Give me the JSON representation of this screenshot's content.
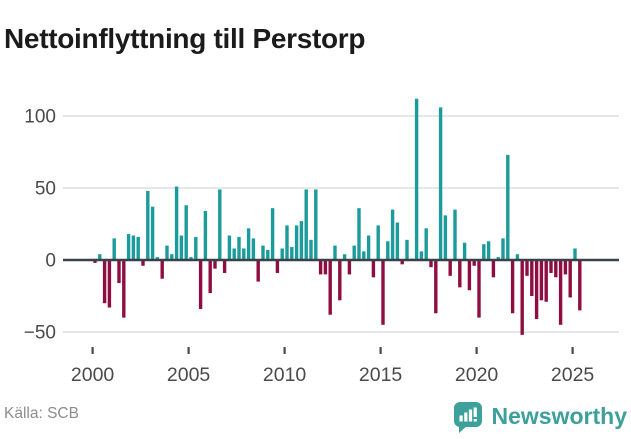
{
  "title": "Nettoinflyttning till Perstorp",
  "source_label": "Källa: SCB",
  "branding": {
    "logo_text": "Newsworthy"
  },
  "colors": {
    "positive": "#1b9b9b",
    "negative": "#8e0e42",
    "grid": "#e7e7e7",
    "zero_line": "#3b4148",
    "axis_text": "#4a4a4a",
    "tick_mark": "#4a4a4a",
    "title_text": "#1b1b1b",
    "source_text": "#8d8d8d",
    "brand": "#3da09b"
  },
  "chart_data": {
    "type": "bar",
    "title": "Nettoinflyttning till Perstorp",
    "ylabel": "",
    "xlabel": "",
    "frequency": "quarterly",
    "x_ticks": [
      2000,
      2005,
      2010,
      2015,
      2020,
      2025
    ],
    "y_ticks": [
      100,
      50,
      0,
      -50
    ],
    "ylim": [
      -60,
      120
    ],
    "grid": true,
    "legend": "none",
    "categories": [
      "2000Q1",
      "2000Q2",
      "2000Q3",
      "2000Q4",
      "2001Q1",
      "2001Q2",
      "2001Q3",
      "2001Q4",
      "2002Q1",
      "2002Q2",
      "2002Q3",
      "2002Q4",
      "2003Q1",
      "2003Q2",
      "2003Q3",
      "2003Q4",
      "2004Q1",
      "2004Q2",
      "2004Q3",
      "2004Q4",
      "2005Q1",
      "2005Q2",
      "2005Q3",
      "2005Q4",
      "2006Q1",
      "2006Q2",
      "2006Q3",
      "2006Q4",
      "2007Q1",
      "2007Q2",
      "2007Q3",
      "2007Q4",
      "2008Q1",
      "2008Q2",
      "2008Q3",
      "2008Q4",
      "2009Q1",
      "2009Q2",
      "2009Q3",
      "2009Q4",
      "2010Q1",
      "2010Q2",
      "2010Q3",
      "2010Q4",
      "2011Q1",
      "2011Q2",
      "2011Q3",
      "2011Q4",
      "2012Q1",
      "2012Q2",
      "2012Q3",
      "2012Q4",
      "2013Q1",
      "2013Q2",
      "2013Q3",
      "2013Q4",
      "2014Q1",
      "2014Q2",
      "2014Q3",
      "2014Q4",
      "2015Q1",
      "2015Q2",
      "2015Q3",
      "2015Q4",
      "2016Q1",
      "2016Q2",
      "2016Q3",
      "2016Q4",
      "2017Q1",
      "2017Q2",
      "2017Q3",
      "2017Q4",
      "2018Q1",
      "2018Q2",
      "2018Q3",
      "2018Q4",
      "2019Q1",
      "2019Q2",
      "2019Q3",
      "2019Q4",
      "2020Q1",
      "2020Q2",
      "2020Q3",
      "2020Q4",
      "2021Q1",
      "2021Q2",
      "2021Q3",
      "2021Q4",
      "2022Q1",
      "2022Q2",
      "2022Q3",
      "2022Q4",
      "2023Q1",
      "2023Q2",
      "2023Q3",
      "2023Q4",
      "2024Q1",
      "2024Q2",
      "2024Q3",
      "2024Q4",
      "2025Q1",
      "2025Q2"
    ],
    "values": [
      -2,
      4,
      -30,
      -33,
      15,
      -16,
      -40,
      18,
      17,
      16,
      -4,
      48,
      37,
      2,
      -13,
      10,
      4,
      51,
      17,
      38,
      2,
      16,
      -34,
      34,
      -23,
      -6,
      49,
      -9,
      17,
      8,
      16,
      8,
      22,
      15,
      -15,
      10,
      7,
      36,
      -9,
      8,
      24,
      9,
      24,
      27,
      49,
      14,
      49,
      -10,
      -10,
      -38,
      10,
      -28,
      4,
      -10,
      10,
      36,
      6,
      17,
      -12,
      24,
      -45,
      13,
      35,
      26,
      -3,
      14,
      1,
      112,
      6,
      22,
      -5,
      -37,
      106,
      31,
      -11,
      35,
      -19,
      12,
      -21,
      -4,
      -40,
      11,
      13,
      -12,
      2,
      15,
      73,
      -37,
      4,
      -52,
      -11,
      -25,
      -41,
      -28,
      -29,
      -9,
      -12,
      -45,
      -10,
      -26,
      8,
      -35
    ]
  }
}
